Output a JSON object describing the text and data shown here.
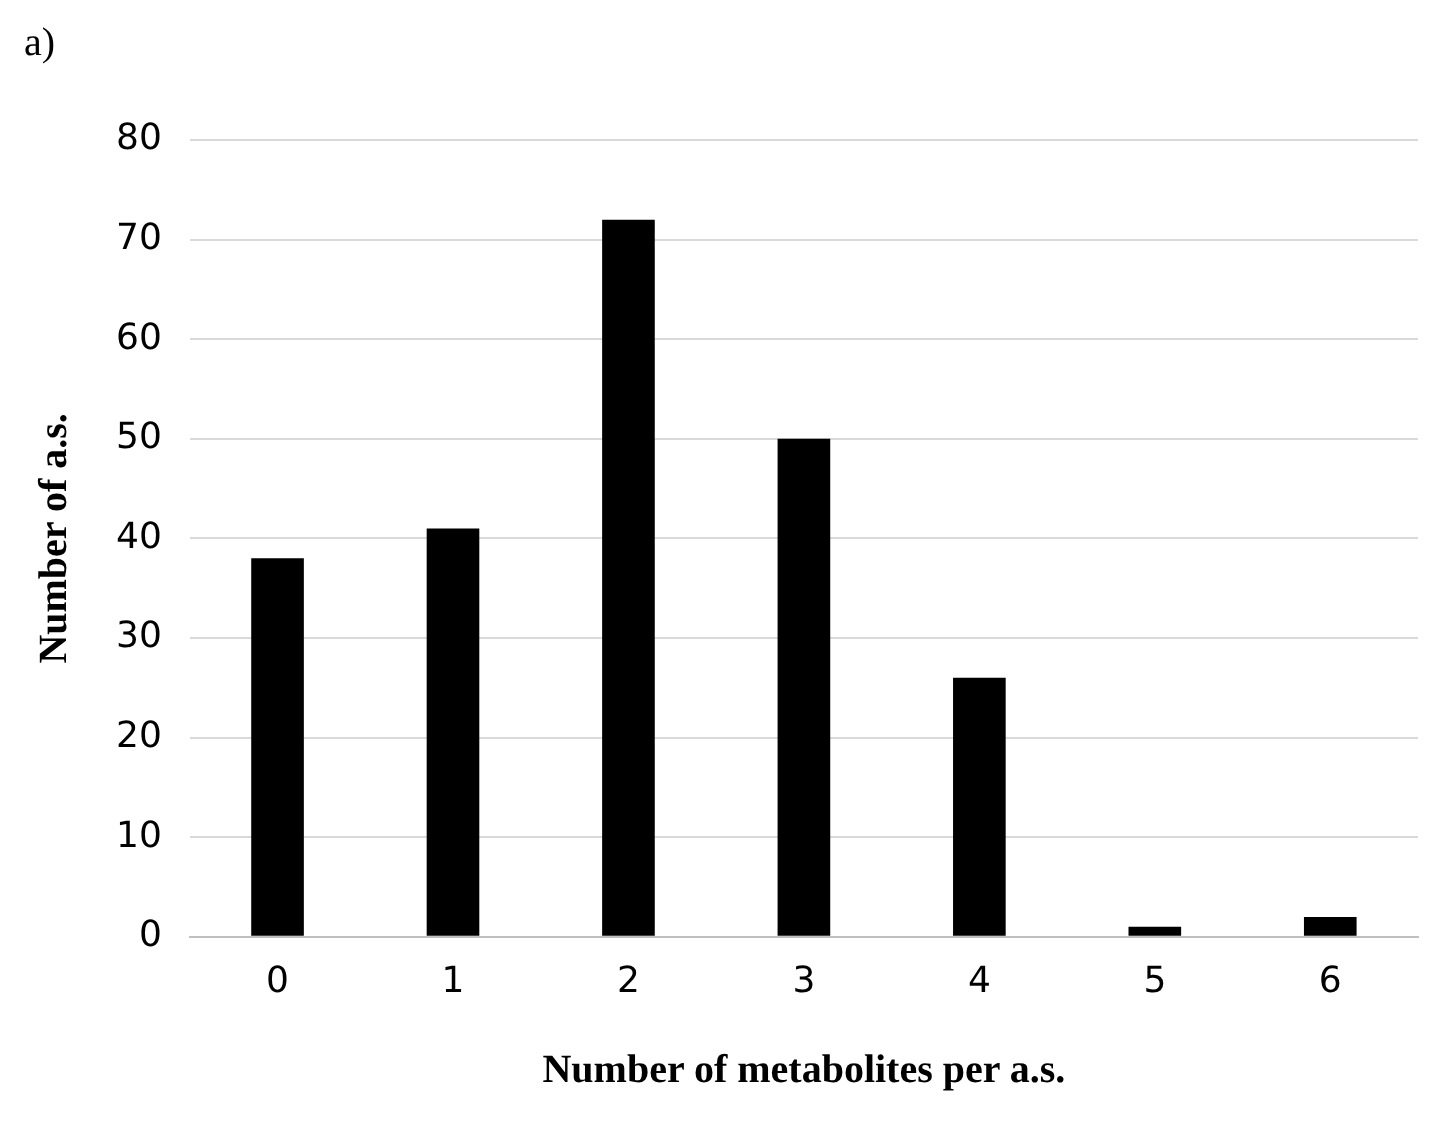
{
  "chart_data": {
    "type": "bar",
    "xlabel": "Number of metabolites per a.s.",
    "ylabel": "Number of a.s.",
    "annotations": [
      "a)"
    ],
    "categories": [
      "0",
      "1",
      "2",
      "3",
      "4",
      "5",
      "6"
    ],
    "values": [
      38,
      41,
      72,
      50,
      26,
      1,
      2
    ],
    "color": "#000000",
    "ylim": [
      0,
      80
    ],
    "yticks": [
      0,
      10,
      20,
      30,
      40,
      50,
      60,
      70,
      80
    ],
    "grid": "y"
  }
}
